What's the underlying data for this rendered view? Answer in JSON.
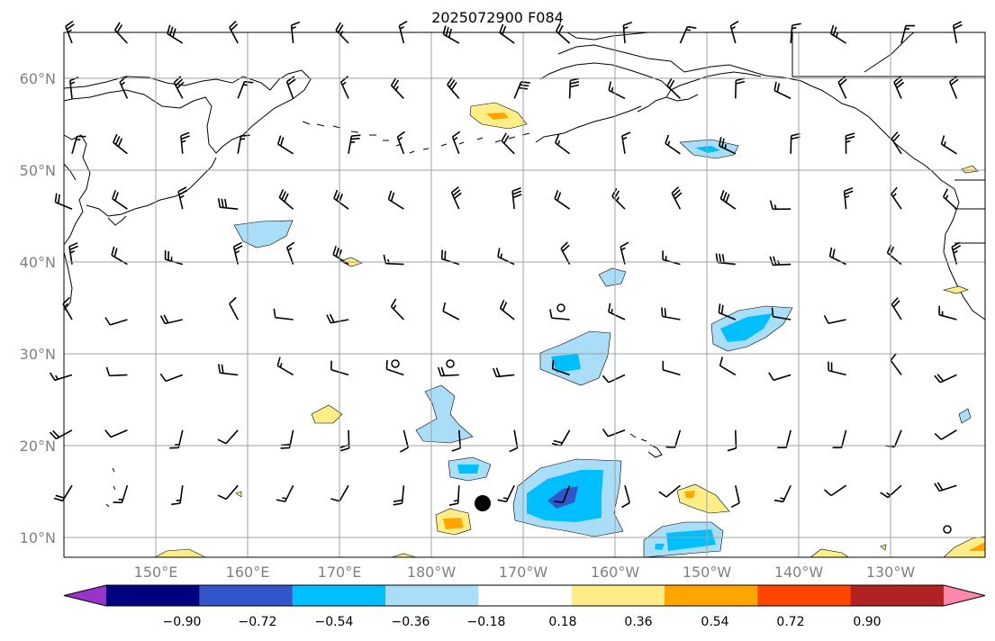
{
  "title": "2025072900 F084",
  "lat_labels": [
    "60°N",
    "50°N",
    "40°N",
    "30°N",
    "20°N",
    "10°N"
  ],
  "lon_labels": [
    "150°E",
    "160°E",
    "170°E",
    "180°W",
    "170°W",
    "160°W",
    "150°W",
    "140°W",
    "130°W"
  ],
  "colorbar": {
    "ticks": [
      "−0.90",
      "−0.72",
      "−0.54",
      "−0.36",
      "−0.18",
      "0.18",
      "0.36",
      "0.54",
      "0.72",
      "0.90"
    ],
    "colors": [
      "#9933cc",
      "#000080",
      "#3355cc",
      "#00bfff",
      "#aaddf8",
      "#ffffff",
      "#ffee88",
      "#ffa500",
      "#ff4500",
      "#b22222",
      "#ff88aa"
    ]
  },
  "colors": {
    "neg_light": "#aaddf8",
    "neg_mid": "#00bfff",
    "neg_dark": "#3355cc",
    "pos_light": "#ffee88",
    "pos_mid": "#ffa500",
    "grid": "#a0a0a0",
    "coast": "#000000"
  }
}
